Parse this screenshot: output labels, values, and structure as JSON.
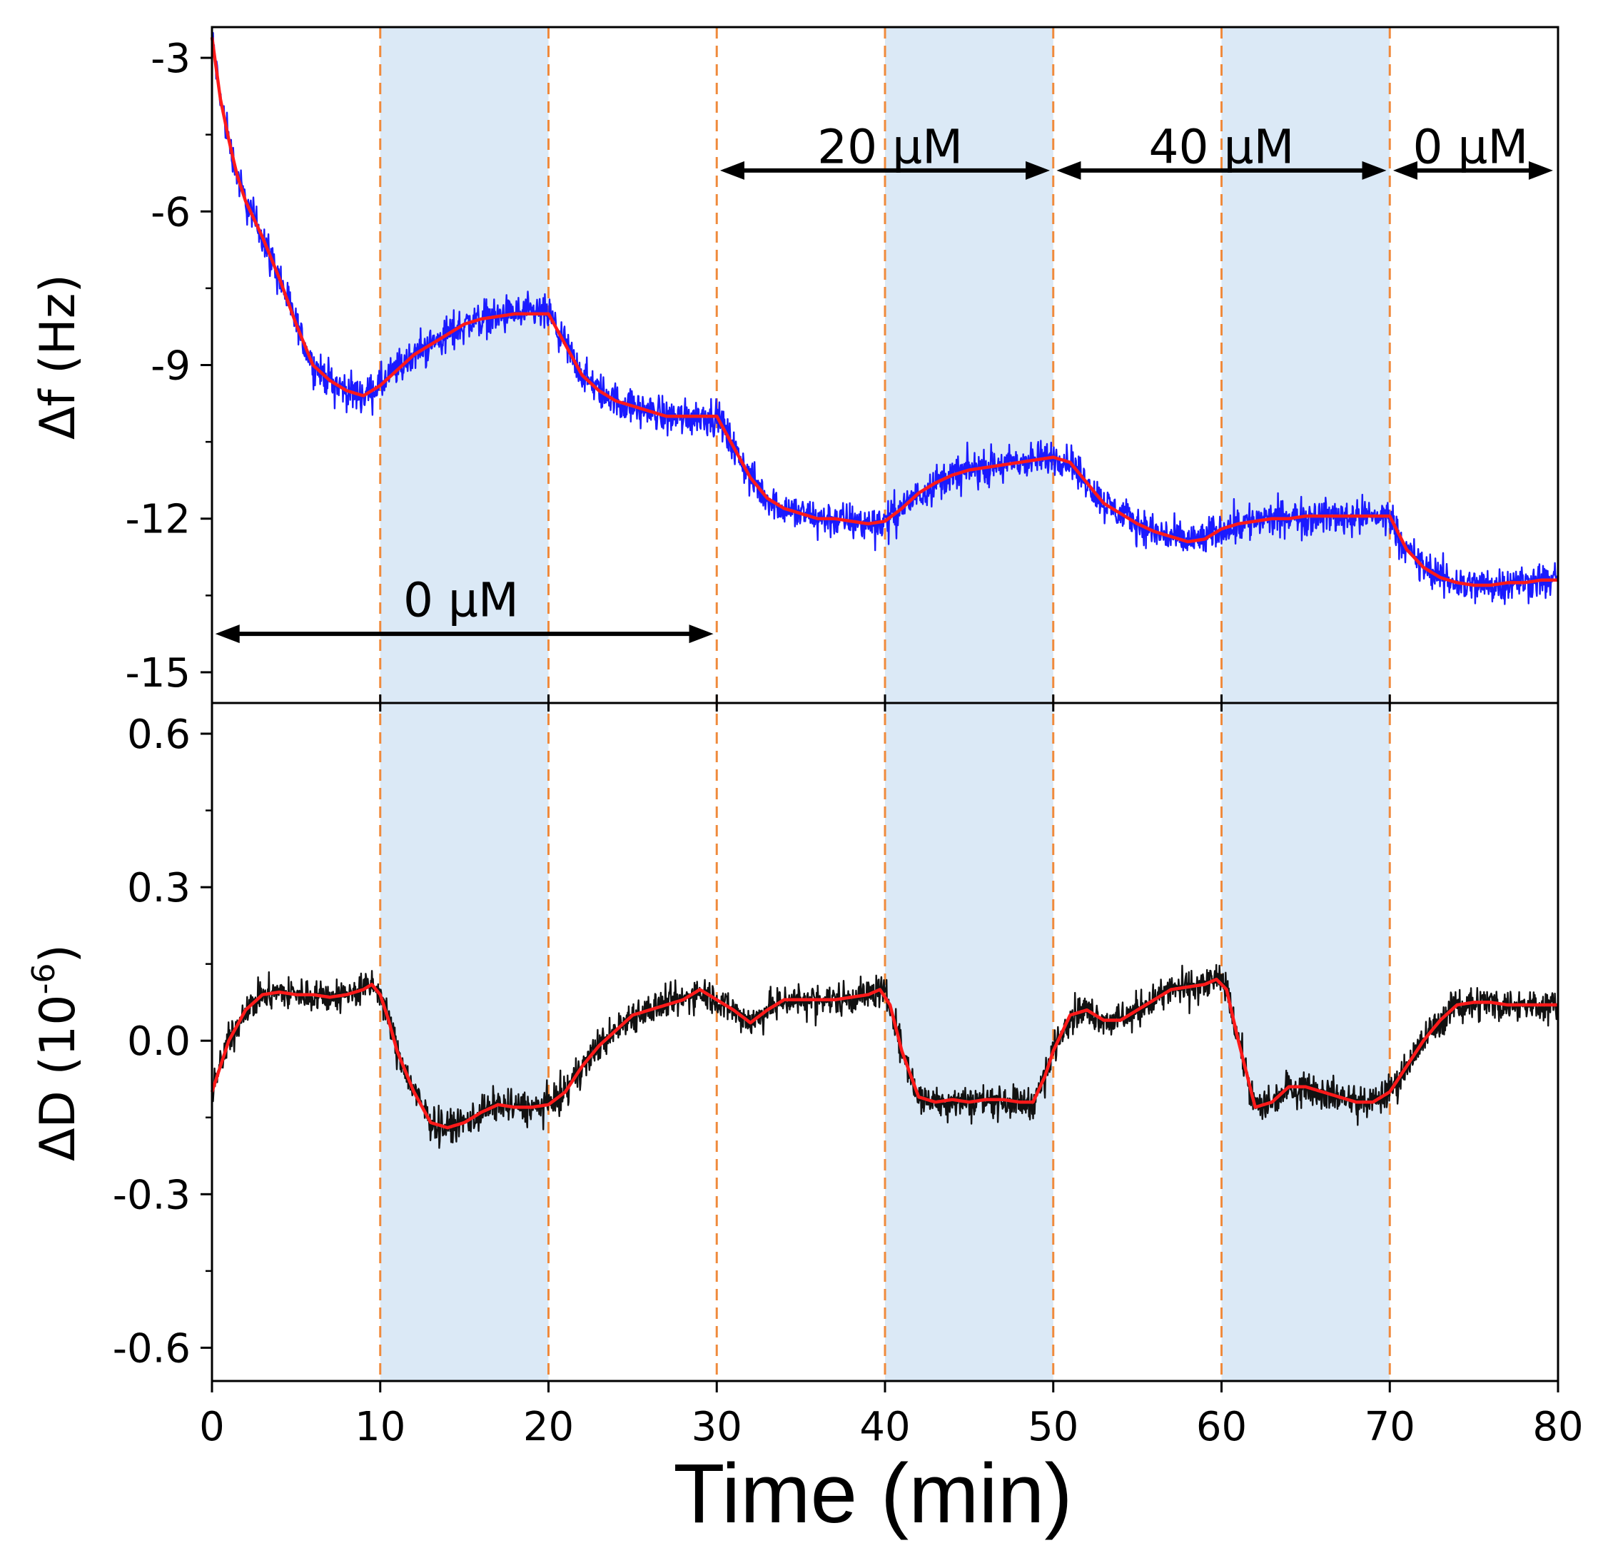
{
  "colors": {
    "shade": "#dbe9f6",
    "dashed_line": "#f08a3c",
    "raw_frequency": "#1a1aff",
    "raw_dissipation": "#111111",
    "fit": "#ff1a1a",
    "arrow": "#000000",
    "frame": "#000000"
  },
  "chart_data": {
    "type": "line",
    "xlabel": "Time (min)",
    "xlim": [
      0,
      80
    ],
    "x_ticks": [
      0,
      10,
      20,
      30,
      40,
      50,
      60,
      70,
      80
    ],
    "x_tick_labels": [
      "0",
      "10",
      "20",
      "30",
      "40",
      "50",
      "60",
      "70",
      "80"
    ],
    "shaded_intervals": [
      [
        10,
        20
      ],
      [
        40,
        50
      ],
      [
        60,
        70
      ]
    ],
    "dashed_lines": [
      10,
      20,
      30,
      40,
      50,
      60,
      70
    ],
    "panels": [
      {
        "name": "frequency",
        "ylabel": "Δf (Hz)",
        "ylim": [
          -15.6,
          -2.4
        ],
        "y_ticks": [
          -3,
          -6,
          -9,
          -12,
          -15
        ],
        "y_tick_labels": [
          "-3",
          "-6",
          "-9",
          "-12",
          "-15"
        ],
        "y_minor_ticks": [
          -4.5,
          -7.5,
          -10.5,
          -13.5
        ],
        "series": [
          {
            "name": "Δf fit",
            "style": "fit",
            "x": [
              0,
              0.5,
              1,
              1.5,
              2,
              3,
              4,
              5,
              6,
              7,
              8,
              9,
              10,
              11,
              12,
              13,
              14,
              15,
              16,
              17,
              18,
              19,
              20,
              21,
              22,
              23,
              24,
              25,
              26,
              27,
              28,
              29,
              30,
              31,
              32,
              33,
              34,
              35,
              36,
              37,
              38,
              39,
              40,
              41,
              42,
              43,
              44,
              45,
              46,
              47,
              48,
              49,
              50,
              51,
              52,
              53,
              54,
              55,
              56,
              57,
              58,
              59,
              60,
              61,
              62,
              63,
              64,
              65,
              66,
              67,
              68,
              69,
              70,
              71,
              72,
              73,
              74,
              75,
              76,
              77,
              78,
              79,
              80
            ],
            "y": [
              -2.6,
              -3.8,
              -4.6,
              -5.3,
              -5.8,
              -6.5,
              -7.3,
              -8.2,
              -9.0,
              -9.3,
              -9.5,
              -9.6,
              -9.4,
              -9.1,
              -8.8,
              -8.6,
              -8.4,
              -8.2,
              -8.1,
              -8.05,
              -8.0,
              -8.0,
              -8.0,
              -8.6,
              -9.2,
              -9.5,
              -9.7,
              -9.8,
              -9.9,
              -10.0,
              -10.0,
              -10.0,
              -10.0,
              -10.6,
              -11.2,
              -11.6,
              -11.8,
              -11.9,
              -12.0,
              -12.0,
              -12.05,
              -12.1,
              -12.05,
              -11.8,
              -11.5,
              -11.3,
              -11.15,
              -11.05,
              -11.0,
              -10.95,
              -10.9,
              -10.85,
              -10.8,
              -10.9,
              -11.3,
              -11.7,
              -11.9,
              -12.1,
              -12.25,
              -12.35,
              -12.45,
              -12.4,
              -12.2,
              -12.1,
              -12.05,
              -12.0,
              -12.0,
              -11.95,
              -11.95,
              -11.95,
              -11.95,
              -11.95,
              -11.95,
              -12.6,
              -12.95,
              -13.15,
              -13.25,
              -13.3,
              -13.3,
              -13.25,
              -13.25,
              -13.2,
              -13.2
            ],
            "noise_amplitude": 0.65
          }
        ],
        "annotations": [
          {
            "text": "0 μM",
            "arrow_from": 0.2,
            "arrow_to": 29.8,
            "arrow_y": -14.25,
            "label_x": 14.8,
            "label_y": -13.6
          },
          {
            "text": "20 μM",
            "arrow_from": 30.2,
            "arrow_to": 49.8,
            "arrow_y": -5.2,
            "label_x": 40.3,
            "label_y": -4.75
          },
          {
            "text": "40 μM",
            "arrow_from": 50.2,
            "arrow_to": 69.8,
            "arrow_y": -5.2,
            "label_x": 60.0,
            "label_y": -4.75
          },
          {
            "text": "0 μM",
            "arrow_from": 70.2,
            "arrow_to": 79.7,
            "arrow_y": -5.2,
            "label_x": 74.8,
            "label_y": -4.75
          }
        ]
      },
      {
        "name": "dissipation",
        "ylabel": "ΔD (10",
        "ylabel_exponent": "-6",
        "ylabel_suffix": ")",
        "ylim": [
          -0.665,
          0.66
        ],
        "y_ticks": [
          0.6,
          0.3,
          0.0,
          -0.3,
          -0.6
        ],
        "y_tick_labels": [
          "0.6",
          "0.3",
          "0.0",
          "-0.3",
          "-0.6"
        ],
        "y_minor_ticks": [
          0.45,
          0.15,
          -0.15,
          -0.45
        ],
        "series": [
          {
            "name": "ΔD fit",
            "style": "fit",
            "x": [
              0,
              1,
              2,
              3,
              4,
              5,
              6,
              7,
              8,
              9,
              9.5,
              10,
              10.5,
              11,
              12,
              13,
              14,
              15,
              16,
              17,
              18,
              19,
              20,
              21,
              22,
              23,
              24,
              25,
              26,
              27,
              28,
              29,
              30,
              31,
              32,
              33,
              34,
              35,
              36,
              37,
              38,
              39,
              39.7,
              40.3,
              41,
              42,
              43,
              44,
              45,
              46,
              47,
              48,
              48.8,
              49.5,
              50,
              51,
              52,
              53,
              54,
              55,
              56,
              57,
              58,
              59,
              59.7,
              60.3,
              61,
              62,
              63,
              64,
              65,
              66,
              67,
              68,
              69,
              70,
              71,
              72,
              73,
              74,
              75,
              76,
              77,
              78,
              79,
              80
            ],
            "y": [
              -0.1,
              0.0,
              0.06,
              0.09,
              0.095,
              0.09,
              0.09,
              0.085,
              0.09,
              0.1,
              0.11,
              0.09,
              0.04,
              -0.02,
              -0.1,
              -0.16,
              -0.17,
              -0.16,
              -0.14,
              -0.125,
              -0.13,
              -0.13,
              -0.125,
              -0.1,
              -0.05,
              -0.01,
              0.02,
              0.05,
              0.06,
              0.07,
              0.08,
              0.1,
              0.08,
              0.06,
              0.035,
              0.06,
              0.08,
              0.08,
              0.08,
              0.08,
              0.085,
              0.09,
              0.1,
              0.07,
              -0.02,
              -0.11,
              -0.12,
              -0.115,
              -0.12,
              -0.115,
              -0.115,
              -0.12,
              -0.12,
              -0.07,
              -0.02,
              0.05,
              0.06,
              0.04,
              0.04,
              0.06,
              0.08,
              0.1,
              0.105,
              0.11,
              0.12,
              0.1,
              0.0,
              -0.13,
              -0.12,
              -0.09,
              -0.09,
              -0.1,
              -0.11,
              -0.12,
              -0.12,
              -0.1,
              -0.05,
              0.0,
              0.04,
              0.07,
              0.075,
              0.075,
              0.07,
              0.07,
              0.07,
              0.07
            ],
            "noise_amplitude": 0.06
          }
        ]
      }
    ]
  }
}
